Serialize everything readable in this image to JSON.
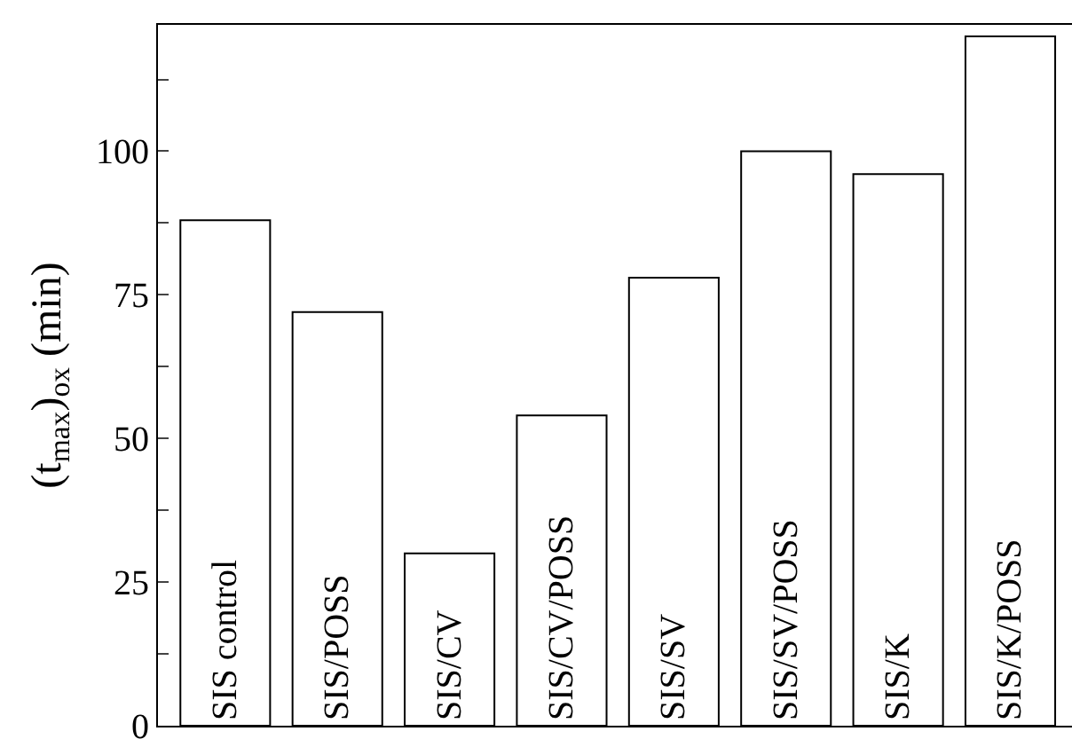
{
  "chart_data": {
    "type": "bar",
    "categories": [
      "SIS control",
      "SIS/POSS",
      "SIS/CV",
      "SIS/CV/POSS",
      "SIS/SV",
      "SIS/SV/POSS",
      "SIS/K",
      "SIS/K/POSS"
    ],
    "values": [
      88,
      72,
      30,
      54,
      78,
      100,
      96,
      120
    ],
    "color": "#ffffff",
    "ylabel": "(t$_{max}$)$_{ox}$ (min)",
    "ylim": [
      0,
      122
    ],
    "yticks": [
      0,
      {
        "value": 12.5,
        "label": null
      },
      25,
      {
        "value": 37.5,
        "label": null
      },
      50,
      {
        "value": 62.5,
        "label": null
      },
      75,
      {
        "value": 87.5,
        "label": null
      },
      100,
      {
        "value": 112.5,
        "label": null
      }
    ]
  }
}
